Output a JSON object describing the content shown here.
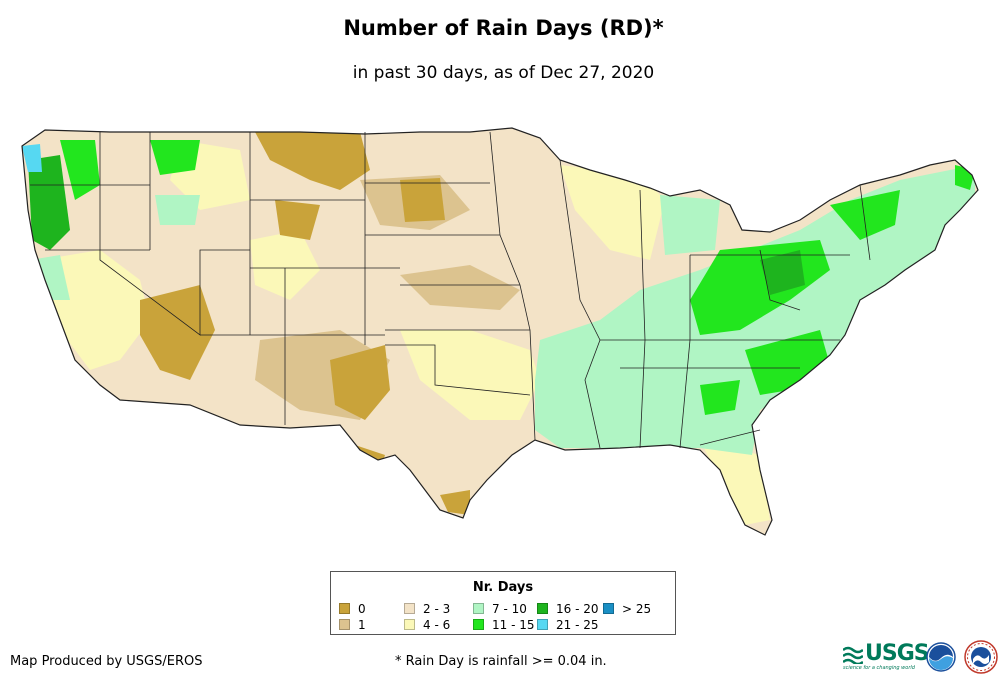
{
  "title": "Number of Rain Days (RD)*",
  "subtitle": "in past 30 days, as of Dec 27, 2020",
  "legend": {
    "title": "Nr. Days",
    "items": [
      {
        "label": "0",
        "color": "#c9a33a"
      },
      {
        "label": "1",
        "color": "#dcc38f"
      },
      {
        "label": "2 - 3",
        "color": "#f3e3c7"
      },
      {
        "label": "4 - 6",
        "color": "#fbf8b8"
      },
      {
        "label": "7 - 10",
        "color": "#b0f5c4"
      },
      {
        "label": "11 - 15",
        "color": "#22e61e"
      },
      {
        "label": "16 - 20",
        "color": "#1eb41e"
      },
      {
        "label": "21 - 25",
        "color": "#56d8f2"
      },
      {
        "label": "> 25",
        "color": "#1a8fc4"
      }
    ]
  },
  "credit": "Map Produced by USGS/EROS",
  "footnote": "* Rain Day is rainfall >= 0.04 in.",
  "logos": {
    "usgs_text": "USGS",
    "usgs_tagline": "science for a changing world"
  }
}
